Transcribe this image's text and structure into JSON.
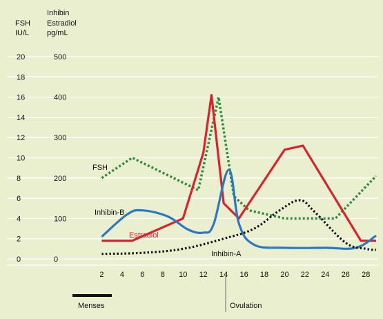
{
  "colors": {
    "background": "#e9efcf",
    "grid": "#ffffff",
    "fsh": "#2f8a3a",
    "estradiol": "#d9232a",
    "inhibin_b": "#2a78c0",
    "inhibin_a": "#111111"
  },
  "header": {
    "fsh_axis_label_line1": "FSH",
    "fsh_axis_label_line2": "IU/L",
    "right_axis_label_line1": "Inhibin",
    "right_axis_label_line2": "Estradiol",
    "right_axis_label_line3": "pg/mL"
  },
  "chart_data": {
    "type": "line",
    "x_ticks": [
      2,
      4,
      6,
      8,
      10,
      12,
      14,
      16,
      18,
      20,
      22,
      24,
      26,
      28
    ],
    "xlim": [
      0,
      29
    ],
    "y_fsh_ticks": [
      0,
      2,
      4,
      6,
      8,
      10,
      12,
      14,
      16,
      18,
      20
    ],
    "y_fsh_ylim": [
      0,
      20
    ],
    "y_pg_ticks": [
      0,
      100,
      200,
      300,
      400,
      500
    ],
    "y_pg_ylim": [
      0,
      500
    ],
    "grid": "horizontal",
    "series": [
      {
        "name": "FSH",
        "label": "FSH",
        "axis": "fsh",
        "style": "dotted",
        "points": [
          [
            2,
            8.0
          ],
          [
            5,
            10.0
          ],
          [
            11.5,
            6.8
          ],
          [
            13.5,
            16.0
          ],
          [
            15,
            6.2
          ],
          [
            16.5,
            4.8
          ],
          [
            20,
            4.0
          ],
          [
            25,
            4.0
          ],
          [
            29,
            8.2
          ]
        ]
      },
      {
        "name": "Estradiol",
        "label": "Estradiol",
        "axis": "fsh",
        "style": "solid",
        "points": [
          [
            2,
            1.8
          ],
          [
            5,
            1.8
          ],
          [
            10,
            4.0
          ],
          [
            12,
            10.5
          ],
          [
            12.8,
            16.2
          ],
          [
            14,
            5.5
          ],
          [
            15.5,
            4.0
          ],
          [
            20,
            10.8
          ],
          [
            21.8,
            11.2
          ],
          [
            27.5,
            1.8
          ],
          [
            29,
            1.8
          ]
        ]
      },
      {
        "name": "Inhibin-B",
        "label": "Inhibin-B",
        "axis": "fsh",
        "style": "solid",
        "points": [
          [
            2,
            2.2
          ],
          [
            4.5,
            4.4
          ],
          [
            6,
            4.8
          ],
          [
            8.5,
            4.2
          ],
          [
            10.5,
            2.9
          ],
          [
            12,
            2.6
          ],
          [
            13,
            3.4
          ],
          [
            14.5,
            8.8
          ],
          [
            15.5,
            3.5
          ],
          [
            17,
            1.4
          ],
          [
            20,
            1.1
          ],
          [
            24,
            1.1
          ],
          [
            27,
            1.1
          ],
          [
            29,
            2.3
          ]
        ]
      },
      {
        "name": "Inhibin-A",
        "label": "Inhibin-A",
        "axis": "fsh",
        "style": "dotted",
        "points": [
          [
            2,
            0.5
          ],
          [
            6,
            0.6
          ],
          [
            10,
            1.0
          ],
          [
            14,
            2.0
          ],
          [
            17,
            3.0
          ],
          [
            19.5,
            4.8
          ],
          [
            21.5,
            5.8
          ],
          [
            23,
            4.6
          ],
          [
            26,
            1.6
          ],
          [
            28,
            1.0
          ],
          [
            29,
            0.9
          ]
        ]
      }
    ],
    "annotations": {
      "menses": "Menses",
      "ovulation": "Ovulation"
    }
  }
}
